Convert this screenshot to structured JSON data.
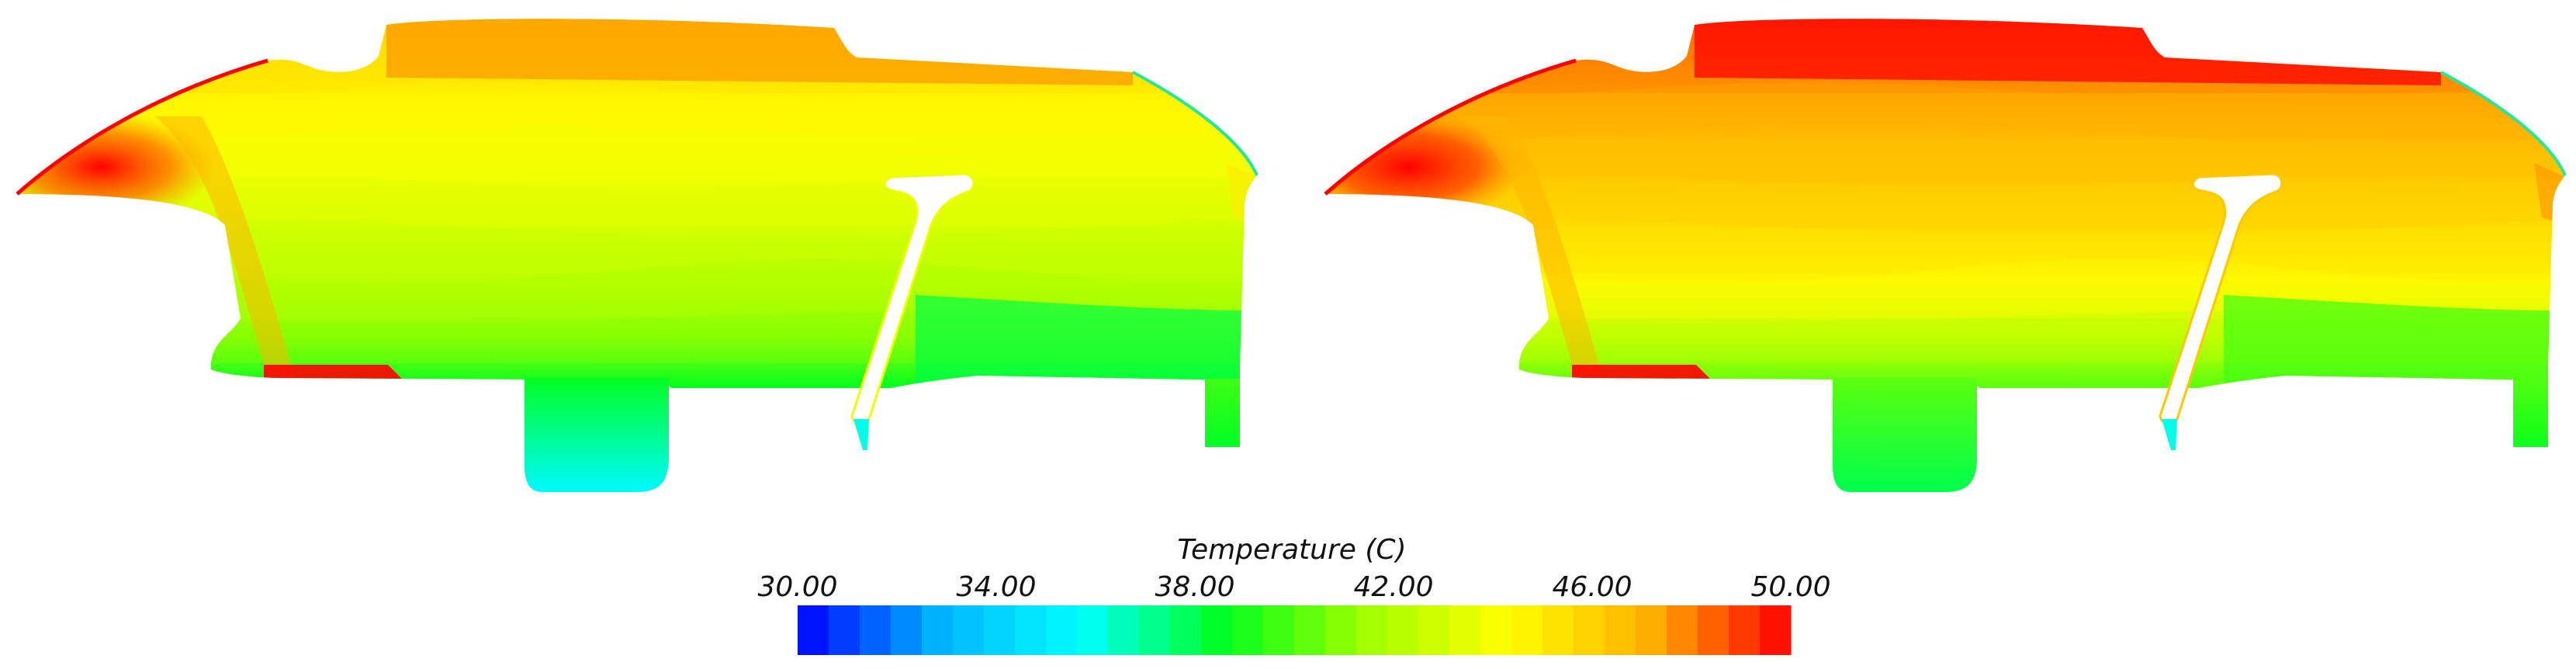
{
  "legend": {
    "title": "Temperature (C)",
    "tick_labels": [
      "30.00",
      "34.00",
      "38.00",
      "42.00",
      "46.00",
      "50.00"
    ],
    "min": 30,
    "max": 50,
    "bands": 32,
    "colormap": [
      "#0000ff",
      "#00b4ff",
      "#00ffff",
      "#00ff20",
      "#a0ff00",
      "#ffff00",
      "#ffb000",
      "#ff0000"
    ]
  },
  "panels": [
    {
      "name": "left-contour",
      "band_levels": [
        46.0,
        45.0,
        44.4,
        43.8,
        43.0,
        42.2,
        41.2,
        38.6
      ],
      "top_strip": 47.5,
      "hot_corner": 50.0,
      "tab_level": 35.5,
      "small_tab_level": 38.5
    },
    {
      "name": "right-contour",
      "band_levels": [
        48.6,
        47.6,
        47.0,
        46.3,
        45.6,
        44.6,
        42.6,
        40.2
      ],
      "top_strip": 50.0,
      "hot_corner": 50.0,
      "tab_level": 38.0,
      "small_tab_level": 38.8
    }
  ]
}
